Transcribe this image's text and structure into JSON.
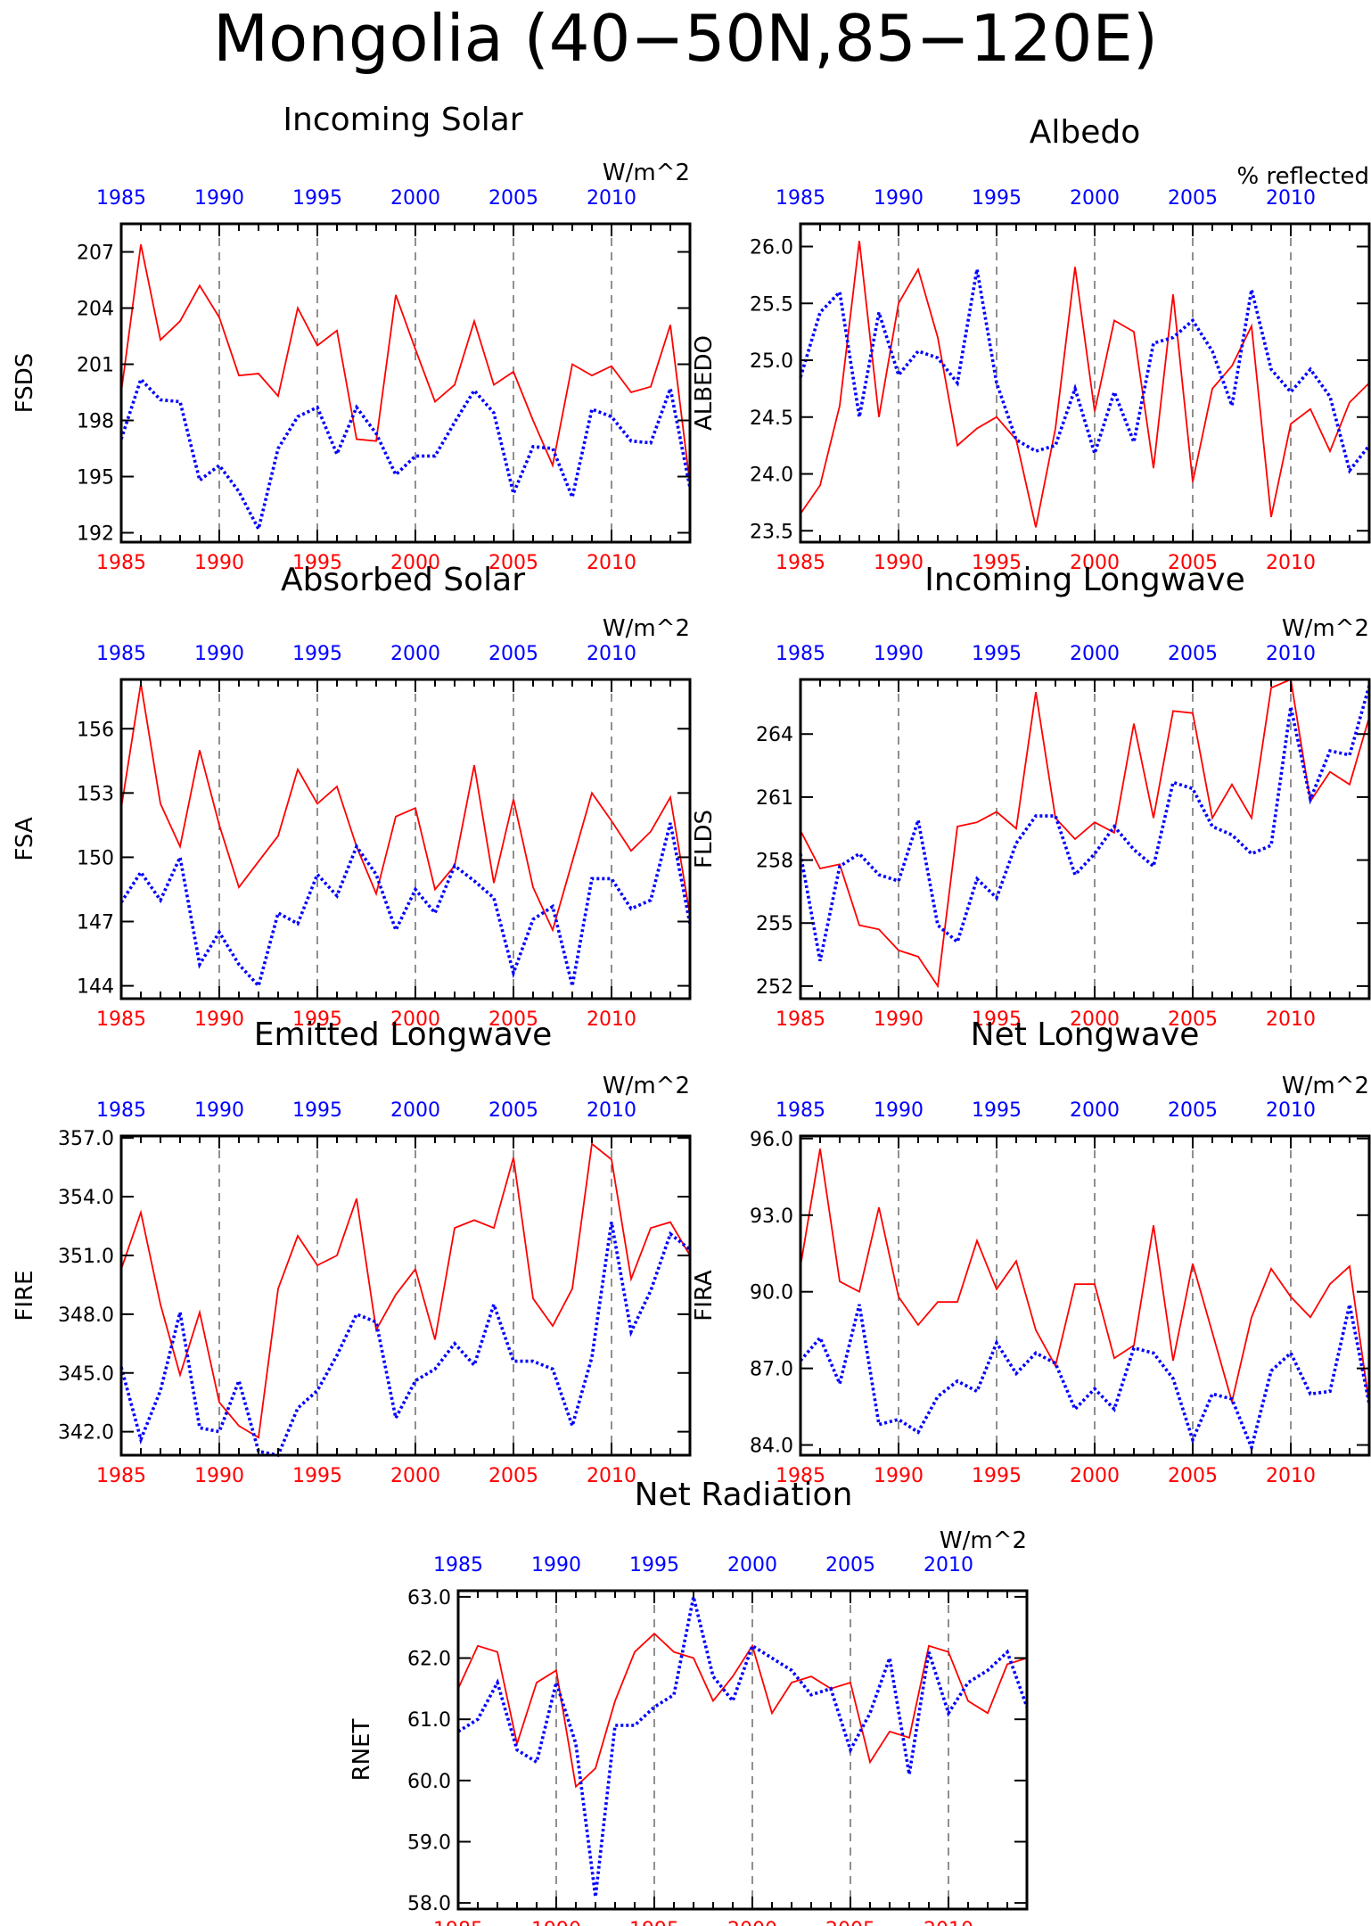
{
  "figure": {
    "title": "Mongolia (40−50N,85−120E)",
    "colors": {
      "series_a": "#ff0000",
      "series_b": "#0000ff",
      "axis": "#000000"
    }
  },
  "chart_data": [
    {
      "type": "line",
      "title": "Incoming Solar",
      "units": "W/m^2",
      "ylabel": "FSDS",
      "xlabel": "",
      "xlim": [
        1985,
        2014
      ],
      "ylim": [
        191.5,
        208.5
      ],
      "yticks": [
        "192",
        "195",
        "198",
        "201",
        "204",
        "207"
      ],
      "xticks": [
        "1985",
        "1990",
        "1995",
        "2000",
        "2005",
        "2010"
      ],
      "vgrid": [
        1990,
        1995,
        2000,
        2005,
        2010
      ],
      "x": [
        1985,
        1986,
        1987,
        1988,
        1989,
        1990,
        1991,
        1992,
        1993,
        1994,
        1995,
        1996,
        1997,
        1998,
        1999,
        2000,
        2001,
        2002,
        2003,
        2004,
        2005,
        2006,
        2007,
        2008,
        2009,
        2010,
        2011,
        2012,
        2013,
        2014
      ],
      "series": [
        {
          "style": "solid",
          "color": "#ff0000",
          "values": [
            199.5,
            207.4,
            202.3,
            203.3,
            205.2,
            203.5,
            200.4,
            200.5,
            199.3,
            204.0,
            202.0,
            202.8,
            197.0,
            196.9,
            204.7,
            201.8,
            199.0,
            199.9,
            203.3,
            199.9,
            200.6,
            198.0,
            195.6,
            201.0,
            200.4,
            200.9,
            199.5,
            199.8,
            203.1,
            194.6
          ]
        },
        {
          "style": "dotted",
          "color": "#0000ff",
          "values": [
            197.0,
            200.2,
            199.1,
            199.0,
            194.8,
            195.6,
            194.2,
            192.2,
            196.5,
            198.2,
            198.7,
            196.2,
            198.7,
            197.3,
            195.1,
            196.1,
            196.1,
            197.9,
            199.6,
            198.4,
            194.1,
            196.6,
            196.5,
            193.9,
            198.6,
            198.2,
            196.9,
            196.8,
            199.7,
            194.4
          ]
        }
      ]
    },
    {
      "type": "line",
      "title": "Albedo",
      "units": "% reflected",
      "ylabel": "ALBEDO",
      "xlabel": "",
      "xlim": [
        1985,
        2014
      ],
      "ylim": [
        23.4,
        26.2
      ],
      "yticks": [
        "23.5",
        "24.0",
        "24.5",
        "25.0",
        "25.5",
        "26.0"
      ],
      "xticks": [
        "1985",
        "1990",
        "1995",
        "2000",
        "2005",
        "2010"
      ],
      "vgrid": [
        1990,
        1995,
        2000,
        2005,
        2010
      ],
      "x": [
        1985,
        1986,
        1987,
        1988,
        1989,
        1990,
        1991,
        1992,
        1993,
        1994,
        1995,
        1996,
        1997,
        1998,
        1999,
        2000,
        2001,
        2002,
        2003,
        2004,
        2005,
        2006,
        2007,
        2008,
        2009,
        2010,
        2011,
        2012,
        2013,
        2014
      ],
      "series": [
        {
          "style": "solid",
          "color": "#ff0000",
          "values": [
            23.65,
            23.9,
            24.6,
            26.05,
            24.5,
            25.5,
            25.8,
            25.2,
            24.25,
            24.4,
            24.5,
            24.3,
            23.53,
            24.4,
            25.82,
            24.55,
            25.35,
            25.25,
            24.05,
            25.58,
            23.93,
            24.75,
            24.95,
            25.3,
            23.62,
            24.44,
            24.57,
            24.2,
            24.63,
            24.8
          ]
        },
        {
          "style": "dotted",
          "color": "#0000ff",
          "values": [
            24.85,
            25.42,
            25.6,
            24.5,
            25.42,
            24.87,
            25.08,
            25.02,
            24.8,
            25.8,
            24.8,
            24.3,
            24.2,
            24.25,
            24.75,
            24.18,
            24.72,
            24.28,
            25.15,
            25.2,
            25.35,
            25.08,
            24.6,
            25.62,
            24.92,
            24.72,
            24.92,
            24.68,
            24.03,
            24.25
          ]
        }
      ]
    },
    {
      "type": "line",
      "title": "Absorbed Solar",
      "units": "W/m^2",
      "ylabel": "FSA",
      "xlabel": "",
      "xlim": [
        1985,
        2014
      ],
      "ylim": [
        143.4,
        158.3
      ],
      "yticks": [
        "144",
        "147",
        "150",
        "153",
        "156"
      ],
      "xticks": [
        "1985",
        "1990",
        "1995",
        "2000",
        "2005",
        "2010"
      ],
      "vgrid": [
        1990,
        1995,
        2000,
        2005,
        2010
      ],
      "x": [
        1985,
        1986,
        1987,
        1988,
        1989,
        1990,
        1991,
        1992,
        1993,
        1994,
        1995,
        1996,
        1997,
        1998,
        1999,
        2000,
        2001,
        2002,
        2003,
        2004,
        2005,
        2006,
        2007,
        2008,
        2009,
        2010,
        2011,
        2012,
        2013,
        2014
      ],
      "series": [
        {
          "style": "solid",
          "color": "#ff0000",
          "values": [
            152.3,
            158.1,
            152.5,
            150.5,
            155.0,
            151.5,
            148.6,
            149.8,
            151.0,
            154.1,
            152.5,
            153.3,
            150.5,
            148.3,
            151.9,
            152.3,
            148.5,
            149.6,
            154.3,
            148.8,
            152.7,
            148.6,
            146.6,
            149.8,
            153.0,
            151.7,
            150.3,
            151.2,
            152.8,
            147.3
          ]
        },
        {
          "style": "dotted",
          "color": "#0000ff",
          "values": [
            147.9,
            149.3,
            148.0,
            150.0,
            145.0,
            146.5,
            145.0,
            144.0,
            147.4,
            146.9,
            149.2,
            148.2,
            150.5,
            149.2,
            146.6,
            148.5,
            147.4,
            149.6,
            148.9,
            148.1,
            144.6,
            147.1,
            147.7,
            144.0,
            149.0,
            149.0,
            147.6,
            148.0,
            151.6,
            146.9
          ]
        }
      ]
    },
    {
      "type": "line",
      "title": "Incoming Longwave",
      "units": "W/m^2",
      "ylabel": "FLDS",
      "xlabel": "",
      "xlim": [
        1985,
        2014
      ],
      "ylim": [
        251.4,
        266.6
      ],
      "yticks": [
        "252",
        "255",
        "258",
        "261",
        "264"
      ],
      "xticks": [
        "1985",
        "1990",
        "1995",
        "2000",
        "2005",
        "2010"
      ],
      "vgrid": [
        1990,
        1995,
        2000,
        2005,
        2010
      ],
      "x": [
        1985,
        1986,
        1987,
        1988,
        1989,
        1990,
        1991,
        1992,
        1993,
        1994,
        1995,
        1996,
        1997,
        1998,
        1999,
        2000,
        2001,
        2002,
        2003,
        2004,
        2005,
        2006,
        2007,
        2008,
        2009,
        2010,
        2011,
        2012,
        2013,
        2014
      ],
      "series": [
        {
          "style": "solid",
          "color": "#ff0000",
          "values": [
            259.4,
            257.6,
            257.8,
            254.9,
            254.7,
            253.7,
            253.4,
            252.0,
            259.6,
            259.8,
            260.3,
            259.5,
            266.0,
            260.0,
            259.0,
            259.8,
            259.3,
            264.5,
            260.0,
            265.1,
            265.0,
            260.0,
            261.6,
            260.0,
            266.2,
            266.6,
            260.8,
            262.2,
            261.6,
            264.8
          ]
        },
        {
          "style": "dotted",
          "color": "#0000ff",
          "values": [
            258.3,
            253.2,
            257.7,
            258.3,
            257.3,
            257.0,
            259.9,
            254.9,
            254.1,
            257.1,
            256.2,
            258.8,
            260.1,
            260.1,
            257.3,
            258.3,
            259.6,
            258.5,
            257.7,
            261.7,
            261.4,
            259.6,
            259.2,
            258.3,
            258.7,
            265.3,
            260.9,
            263.2,
            263.0,
            266.3
          ]
        }
      ]
    },
    {
      "type": "line",
      "title": "Emitted Longwave",
      "units": "W/m^2",
      "ylabel": "FIRE",
      "xlabel": "",
      "xlim": [
        1985,
        2014
      ],
      "ylim": [
        340.8,
        357.1
      ],
      "yticks": [
        "342.0",
        "345.0",
        "348.0",
        "351.0",
        "354.0",
        "357.0"
      ],
      "xticks": [
        "1985",
        "1990",
        "1995",
        "2000",
        "2005",
        "2010"
      ],
      "vgrid": [
        1990,
        1995,
        2000,
        2005,
        2010
      ],
      "x": [
        1985,
        1986,
        1987,
        1988,
        1989,
        1990,
        1991,
        1992,
        1993,
        1994,
        1995,
        1996,
        1997,
        1998,
        1999,
        2000,
        2001,
        2002,
        2003,
        2004,
        2005,
        2006,
        2007,
        2008,
        2009,
        2010,
        2011,
        2012,
        2013,
        2014
      ],
      "series": [
        {
          "style": "solid",
          "color": "#ff0000",
          "values": [
            350.3,
            353.2,
            348.5,
            344.9,
            348.1,
            343.5,
            342.3,
            341.7,
            349.3,
            352.0,
            350.5,
            351.0,
            353.9,
            347.2,
            349.0,
            350.3,
            346.7,
            352.4,
            352.8,
            352.4,
            356.0,
            348.8,
            347.4,
            349.3,
            356.7,
            355.9,
            349.8,
            352.4,
            352.7,
            351.0
          ]
        },
        {
          "style": "dotted",
          "color": "#0000ff",
          "values": [
            345.3,
            341.6,
            344.1,
            348.1,
            342.2,
            342.0,
            344.6,
            341.0,
            340.8,
            343.2,
            344.1,
            345.9,
            348.0,
            347.6,
            342.7,
            344.6,
            345.2,
            346.5,
            345.4,
            348.5,
            345.6,
            345.6,
            345.2,
            342.3,
            345.8,
            352.7,
            347.1,
            349.2,
            352.1,
            351.3
          ]
        }
      ]
    },
    {
      "type": "line",
      "title": "Net Longwave",
      "units": "W/m^2",
      "ylabel": "FIRA",
      "xlabel": "",
      "xlim": [
        1985,
        2014
      ],
      "ylim": [
        83.6,
        96.1
      ],
      "yticks": [
        "84.0",
        "87.0",
        "90.0",
        "93.0",
        "96.0"
      ],
      "xticks": [
        "1985",
        "1990",
        "1995",
        "2000",
        "2005",
        "2010"
      ],
      "vgrid": [
        1990,
        1995,
        2000,
        2005,
        2010
      ],
      "x": [
        1985,
        1986,
        1987,
        1988,
        1989,
        1990,
        1991,
        1992,
        1993,
        1994,
        1995,
        1996,
        1997,
        1998,
        1999,
        2000,
        2001,
        2002,
        2003,
        2004,
        2005,
        2006,
        2007,
        2008,
        2009,
        2010,
        2011,
        2012,
        2013,
        2014
      ],
      "series": [
        {
          "style": "solid",
          "color": "#ff0000",
          "values": [
            91.0,
            95.6,
            90.4,
            90.0,
            93.3,
            89.8,
            88.7,
            89.6,
            89.6,
            92.0,
            90.1,
            91.2,
            88.5,
            87.1,
            90.3,
            90.3,
            87.4,
            87.9,
            92.6,
            87.3,
            91.1,
            88.4,
            85.7,
            89.0,
            90.9,
            89.8,
            89.0,
            90.3,
            91.0,
            85.6
          ]
        },
        {
          "style": "dotted",
          "color": "#0000ff",
          "values": [
            87.3,
            88.2,
            86.4,
            89.5,
            84.8,
            85.0,
            84.5,
            85.9,
            86.5,
            86.1,
            88.0,
            86.8,
            87.6,
            87.2,
            85.4,
            86.2,
            85.4,
            87.8,
            87.6,
            86.6,
            84.2,
            86.0,
            85.8,
            83.9,
            86.9,
            87.6,
            86.0,
            86.1,
            89.5,
            85.6
          ]
        }
      ]
    },
    {
      "type": "line",
      "title": "Net Radiation",
      "units": "W/m^2",
      "ylabel": "RNET",
      "xlabel": "",
      "xlim": [
        1985,
        2014
      ],
      "ylim": [
        57.9,
        63.1
      ],
      "yticks": [
        "58.0",
        "59.0",
        "60.0",
        "61.0",
        "62.0",
        "63.0"
      ],
      "xticks": [
        "1985",
        "1990",
        "1995",
        "2000",
        "2005",
        "2010"
      ],
      "vgrid": [
        1990,
        1995,
        2000,
        2005,
        2010
      ],
      "x": [
        1985,
        1986,
        1987,
        1988,
        1989,
        1990,
        1991,
        1992,
        1993,
        1994,
        1995,
        1996,
        1997,
        1998,
        1999,
        2000,
        2001,
        2002,
        2003,
        2004,
        2005,
        2006,
        2007,
        2008,
        2009,
        2010,
        2011,
        2012,
        2013,
        2014
      ],
      "series": [
        {
          "style": "solid",
          "color": "#ff0000",
          "values": [
            61.5,
            62.2,
            62.1,
            60.6,
            61.6,
            61.8,
            59.9,
            60.2,
            61.3,
            62.1,
            62.4,
            62.1,
            62.0,
            61.3,
            61.7,
            62.2,
            61.1,
            61.6,
            61.7,
            61.5,
            61.6,
            60.3,
            60.8,
            60.7,
            62.2,
            62.1,
            61.3,
            61.1,
            61.9,
            62.0
          ]
        },
        {
          "style": "dotted",
          "color": "#0000ff",
          "values": [
            60.8,
            61.0,
            61.6,
            60.5,
            60.3,
            61.6,
            60.6,
            58.1,
            60.9,
            60.9,
            61.2,
            61.4,
            63.0,
            61.7,
            61.3,
            62.2,
            62.0,
            61.8,
            61.4,
            61.5,
            60.5,
            61.1,
            62.0,
            60.1,
            62.1,
            61.1,
            61.6,
            61.8,
            62.1,
            61.2
          ]
        }
      ]
    }
  ]
}
